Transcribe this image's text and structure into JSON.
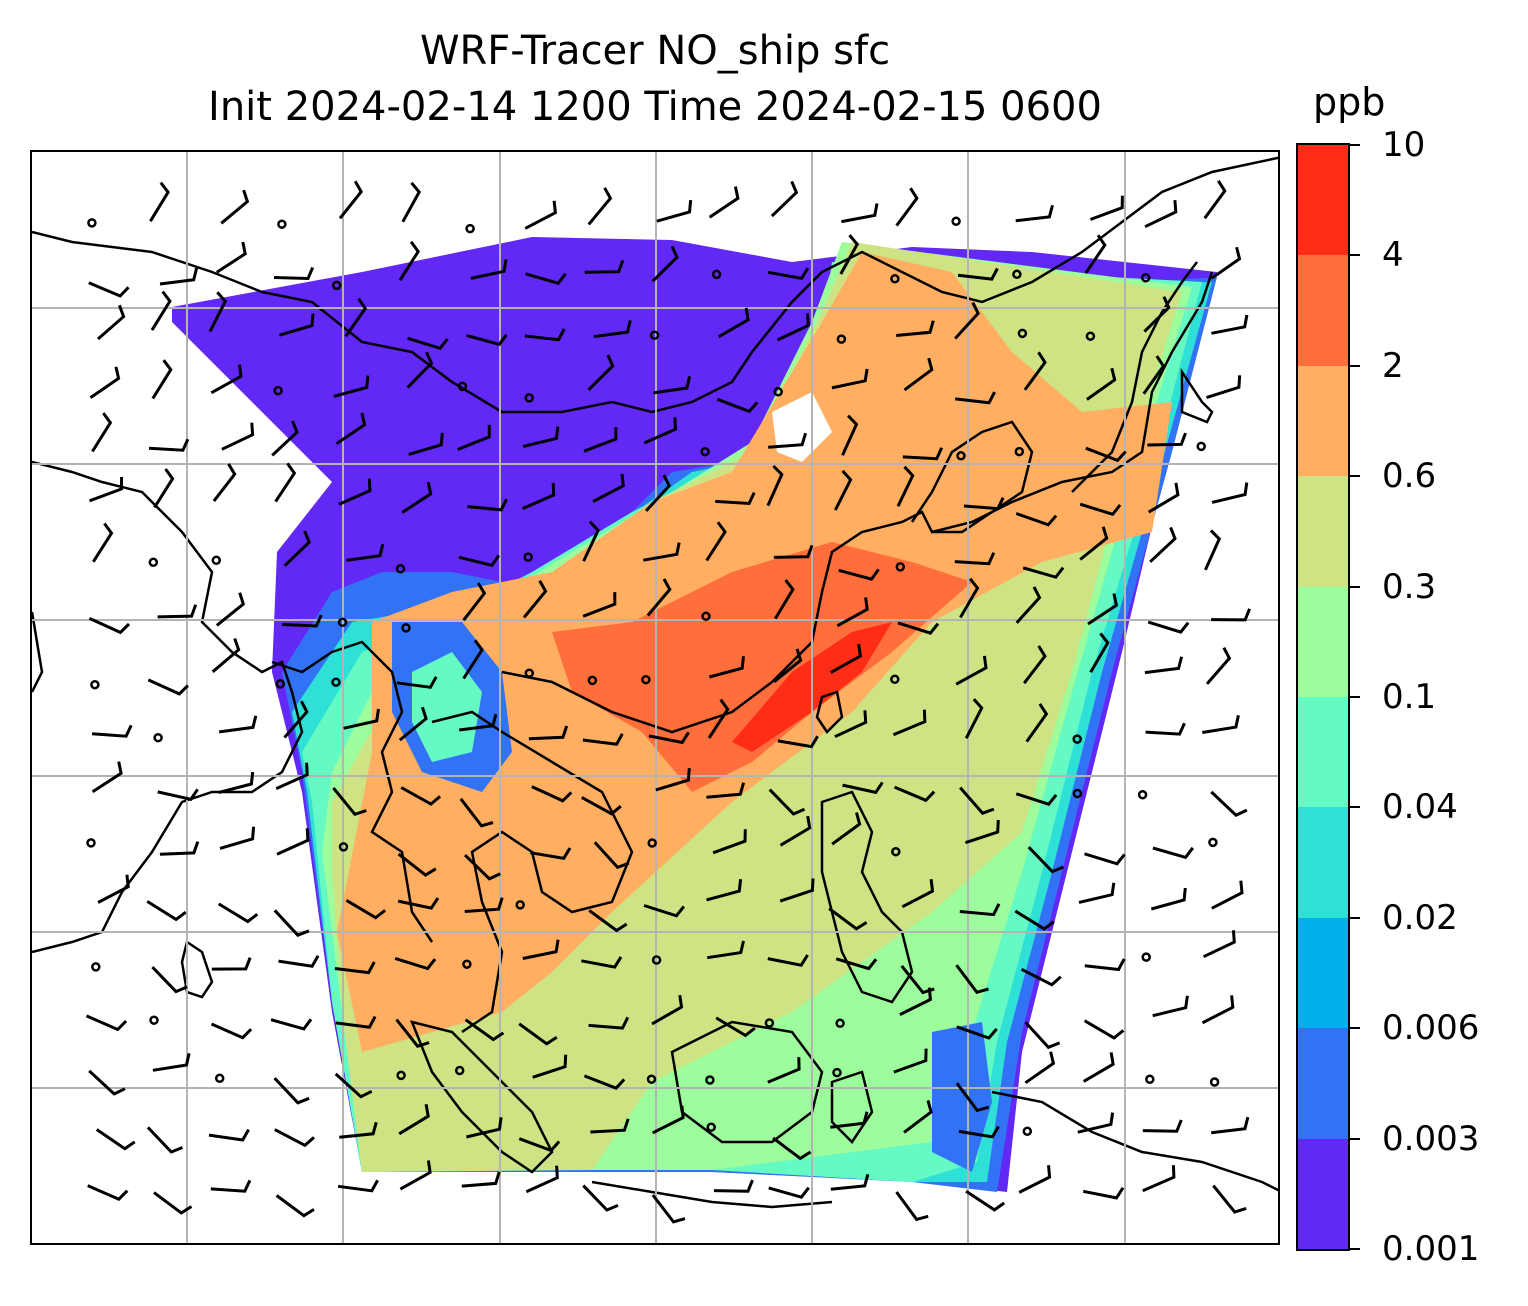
{
  "title": {
    "line1": "WRF-Tracer NO_ship sfc",
    "line2": "Init 2024-02-14 1200 Time 2024-02-15 0600"
  },
  "colorbar": {
    "unit": "ppb",
    "levels": [
      "0.001",
      "0.003",
      "0.006",
      "0.02",
      "0.04",
      "0.1",
      "0.3",
      "0.6",
      "2",
      "4",
      "10"
    ],
    "colors": [
      "#6228f5",
      "#3272f5",
      "#04b0ec",
      "#2fe0d6",
      "#65f9c4",
      "#9dfc9c",
      "#cde384",
      "#ffae62",
      "#ff6e3b",
      "#ff2c16"
    ]
  },
  "map": {
    "background": "#ffffff",
    "gridline_color": "#b4b4b4",
    "coastline_color": "#000000",
    "wind_barb_color": "#000000",
    "calm_marker": "circle"
  }
}
